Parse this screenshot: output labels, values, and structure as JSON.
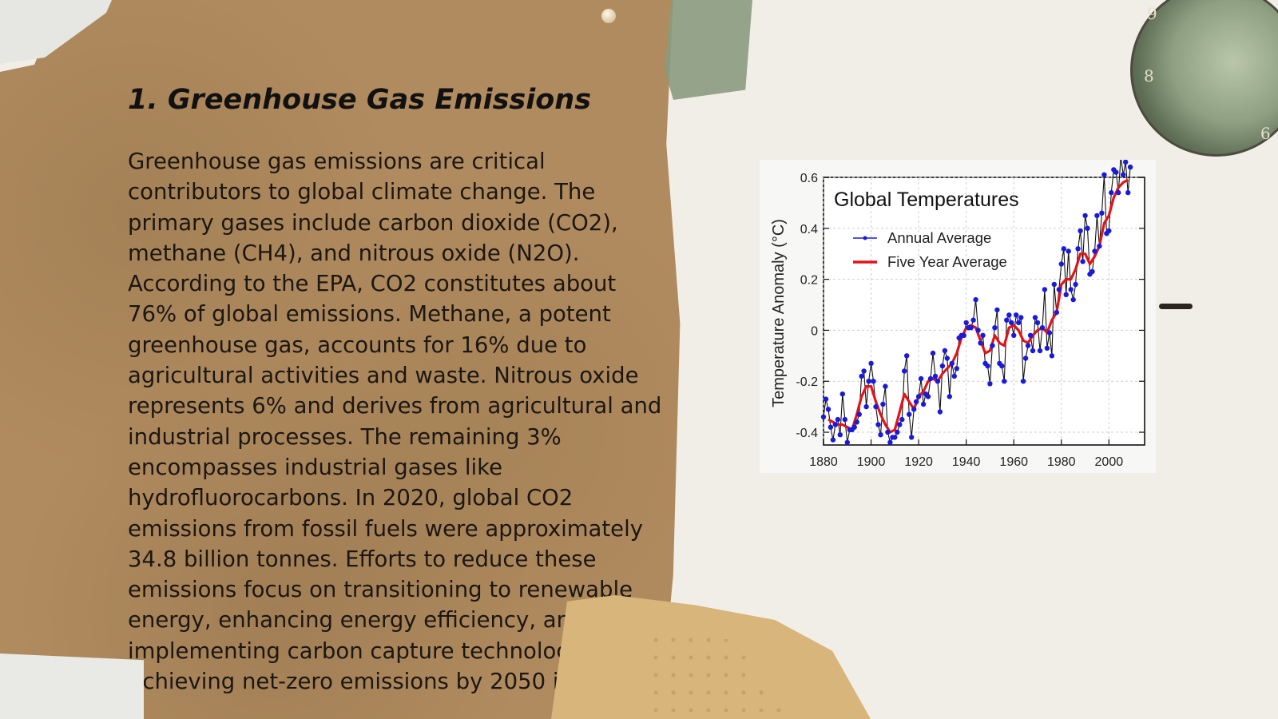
{
  "slide": {
    "title": "1. Greenhouse Gas Emissions",
    "body": "Greenhouse gas emissions are critical contributors to global climate change. The primary gases include carbon dioxide (CO2), methane (CH4), and nitrous oxide (N2O). According to the EPA, CO2 constitutes about 76% of global emissions. Methane, a potent greenhouse gas, accounts for 16% due to agricultural activities and waste. Nitrous oxide represents 6% and derives from agricultural and industrial processes. The remaining 3% encompasses industrial gases like hydrofluorocarbons. In 2020, global CO2 emissions from fossil fuels were approximately 34.8 billion tonnes. Efforts to reduce these emissions focus on transitioning to renewable energy, enhancing energy efficiency, and implementing carbon capture technologies. Achieving net-zero emissions by 2050 is"
  },
  "decor": {
    "clock_numbers": [
      "9",
      "8",
      "6"
    ]
  },
  "colors": {
    "annual": "#1a1adb",
    "five_year": "#e0141a",
    "kraft": "#b08b5f"
  },
  "chart_data": {
    "type": "line",
    "title": "Global Temperatures",
    "xlabel": "",
    "ylabel": "Temperature Anomaly (°C)",
    "xlim": [
      1880,
      2015
    ],
    "ylim": [
      -0.45,
      0.6
    ],
    "x_ticks": [
      "1880",
      "1900",
      "1920",
      "1940",
      "1960",
      "1980",
      "2000"
    ],
    "y_ticks": [
      "0.6",
      "0.4",
      "0.2",
      "0",
      "-0.2",
      "-0.4"
    ],
    "grid": true,
    "legend_position": "top-left",
    "series": [
      {
        "name": "Annual Average",
        "x": [
          1880,
          1881,
          1882,
          1883,
          1884,
          1885,
          1886,
          1887,
          1888,
          1889,
          1890,
          1891,
          1892,
          1893,
          1894,
          1895,
          1896,
          1897,
          1898,
          1899,
          1900,
          1901,
          1902,
          1903,
          1904,
          1905,
          1906,
          1907,
          1908,
          1909,
          1910,
          1911,
          1912,
          1913,
          1914,
          1915,
          1916,
          1917,
          1918,
          1919,
          1920,
          1921,
          1922,
          1923,
          1924,
          1925,
          1926,
          1927,
          1928,
          1929,
          1930,
          1931,
          1932,
          1933,
          1934,
          1935,
          1936,
          1937,
          1938,
          1939,
          1940,
          1941,
          1942,
          1943,
          1944,
          1945,
          1946,
          1947,
          1948,
          1949,
          1950,
          1951,
          1952,
          1953,
          1954,
          1955,
          1956,
          1957,
          1958,
          1959,
          1960,
          1961,
          1962,
          1963,
          1964,
          1965,
          1966,
          1967,
          1968,
          1969,
          1970,
          1971,
          1972,
          1973,
          1974,
          1975,
          1976,
          1977,
          1978,
          1979,
          1980,
          1981,
          1982,
          1983,
          1984,
          1985,
          1986,
          1987,
          1988,
          1989,
          1990,
          1991,
          1992,
          1993,
          1994,
          1995,
          1996,
          1997,
          1998,
          1999,
          2000,
          2001,
          2002,
          2003,
          2004,
          2005,
          2006,
          2007,
          2008,
          2009
        ],
        "values": [
          -0.34,
          -0.27,
          -0.31,
          -0.38,
          -0.43,
          -0.37,
          -0.35,
          -0.41,
          -0.25,
          -0.35,
          -0.44,
          -0.39,
          -0.39,
          -0.38,
          -0.36,
          -0.33,
          -0.18,
          -0.16,
          -0.3,
          -0.2,
          -0.13,
          -0.2,
          -0.3,
          -0.37,
          -0.41,
          -0.29,
          -0.22,
          -0.4,
          -0.44,
          -0.42,
          -0.42,
          -0.4,
          -0.37,
          -0.35,
          -0.16,
          -0.1,
          -0.33,
          -0.42,
          -0.31,
          -0.28,
          -0.26,
          -0.19,
          -0.29,
          -0.25,
          -0.26,
          -0.19,
          -0.09,
          -0.18,
          -0.2,
          -0.32,
          -0.14,
          -0.08,
          -0.11,
          -0.26,
          -0.13,
          -0.18,
          -0.15,
          -0.03,
          -0.02,
          -0.02,
          0.03,
          0.01,
          0.01,
          0.04,
          0.12,
          0.0,
          -0.05,
          -0.02,
          -0.13,
          -0.14,
          -0.21,
          -0.06,
          0.01,
          0.08,
          -0.13,
          -0.14,
          -0.2,
          0.04,
          0.06,
          0.03,
          -0.02,
          0.06,
          0.03,
          0.05,
          -0.2,
          -0.11,
          -0.06,
          -0.02,
          -0.08,
          0.05,
          0.03,
          -0.08,
          0.01,
          0.16,
          -0.07,
          -0.01,
          -0.1,
          0.18,
          0.07,
          0.16,
          0.26,
          0.32,
          0.14,
          0.31,
          0.16,
          0.12,
          0.18,
          0.32,
          0.39,
          0.27,
          0.45,
          0.4,
          0.22,
          0.23,
          0.31,
          0.45,
          0.33,
          0.46,
          0.61,
          0.38,
          0.39,
          0.54,
          0.63,
          0.62,
          0.54,
          0.68,
          0.61,
          0.66,
          0.54,
          0.64
        ]
      },
      {
        "name": "Five Year Average",
        "x": [
          1882,
          1884,
          1886,
          1888,
          1890,
          1892,
          1894,
          1896,
          1898,
          1900,
          1902,
          1904,
          1906,
          1908,
          1910,
          1912,
          1914,
          1916,
          1918,
          1920,
          1922,
          1924,
          1926,
          1928,
          1930,
          1932,
          1934,
          1936,
          1938,
          1940,
          1942,
          1944,
          1946,
          1948,
          1950,
          1952,
          1954,
          1956,
          1958,
          1960,
          1962,
          1964,
          1966,
          1968,
          1970,
          1972,
          1974,
          1976,
          1978,
          1980,
          1982,
          1984,
          1986,
          1988,
          1990,
          1992,
          1994,
          1996,
          1998,
          2000,
          2002,
          2004,
          2006,
          2008
        ],
        "values": [
          -0.35,
          -0.36,
          -0.37,
          -0.37,
          -0.38,
          -0.39,
          -0.33,
          -0.26,
          -0.22,
          -0.22,
          -0.28,
          -0.33,
          -0.37,
          -0.4,
          -0.39,
          -0.32,
          -0.25,
          -0.28,
          -0.31,
          -0.26,
          -0.24,
          -0.2,
          -0.19,
          -0.2,
          -0.17,
          -0.15,
          -0.13,
          -0.09,
          -0.03,
          0.01,
          0.02,
          0.01,
          -0.04,
          -0.09,
          -0.08,
          -0.02,
          -0.05,
          -0.06,
          0.01,
          0.02,
          0.0,
          -0.04,
          -0.05,
          -0.02,
          0.0,
          0.01,
          -0.01,
          0.04,
          0.07,
          0.18,
          0.2,
          0.2,
          0.24,
          0.3,
          0.3,
          0.26,
          0.29,
          0.33,
          0.42,
          0.45,
          0.52,
          0.56,
          0.58,
          0.59
        ]
      }
    ]
  }
}
